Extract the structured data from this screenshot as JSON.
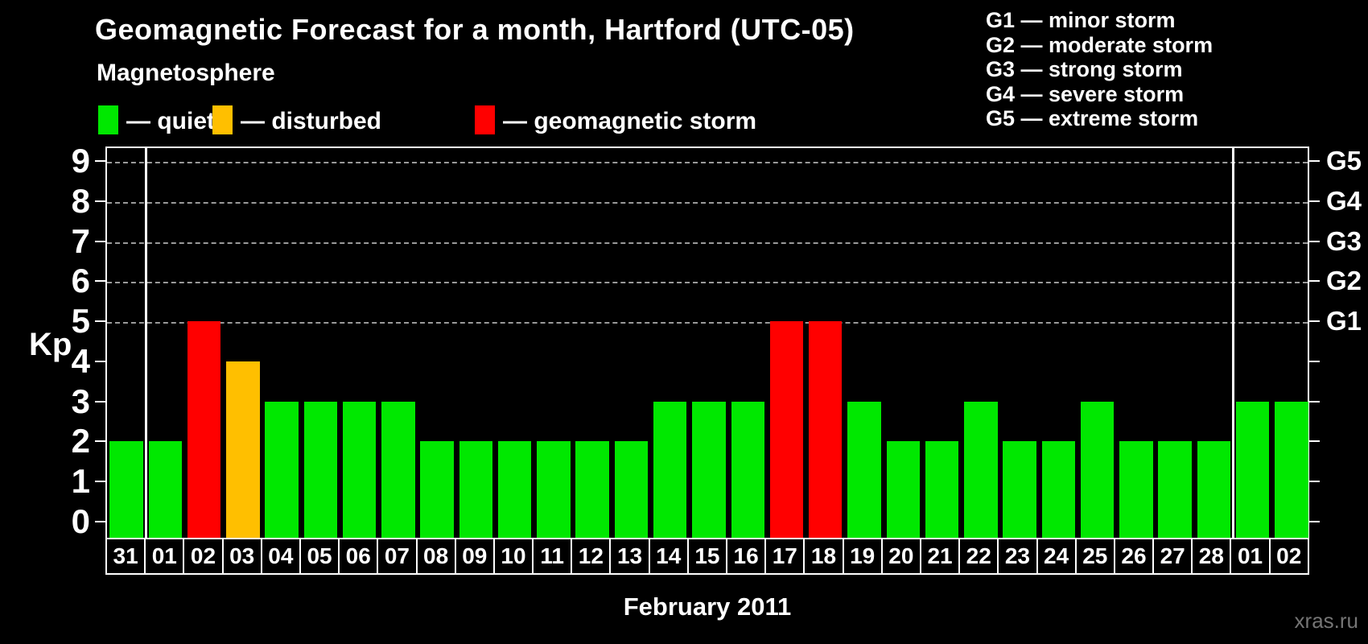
{
  "title": "Geomagnetic Forecast for a month, Hartford (UTC-05)",
  "legend": {
    "heading": "Magnetosphere",
    "items": [
      {
        "label": "— quiet",
        "color": "#00e800",
        "status": "quiet"
      },
      {
        "label": "— disturbed",
        "color": "#ffbf00",
        "status": "disturbed"
      },
      {
        "label": "— geomagnetic storm",
        "color": "#ff0000",
        "status": "storm"
      }
    ]
  },
  "g_legend": [
    "G1 — minor storm",
    "G2 — moderate storm",
    "G3 — strong storm",
    "G4 — severe storm",
    "G5 — extreme storm"
  ],
  "axes": {
    "y_label": "Kp",
    "y_ticks": [
      0,
      1,
      2,
      3,
      4,
      5,
      6,
      7,
      8,
      9
    ],
    "g_axis": [
      {
        "value": 5,
        "label": "G1"
      },
      {
        "value": 6,
        "label": "G2"
      },
      {
        "value": 7,
        "label": "G3"
      },
      {
        "value": 8,
        "label": "G4"
      },
      {
        "value": 9,
        "label": "G5"
      }
    ]
  },
  "x_title": "February 2011",
  "watermark": "xras.ru",
  "chart_data": {
    "type": "bar",
    "title": "Geomagnetic Forecast for a month, Hartford (UTC-05)",
    "xlabel": "February 2011",
    "ylabel": "Kp",
    "ylim": [
      0,
      9
    ],
    "grid_values": [
      5,
      6,
      7,
      8,
      9
    ],
    "legend_position": "top",
    "categories": [
      "31",
      "01",
      "02",
      "03",
      "04",
      "05",
      "06",
      "07",
      "08",
      "09",
      "10",
      "11",
      "12",
      "13",
      "14",
      "15",
      "16",
      "17",
      "18",
      "19",
      "20",
      "21",
      "22",
      "23",
      "24",
      "25",
      "26",
      "27",
      "28",
      "01",
      "02"
    ],
    "values": [
      2,
      2,
      5,
      4,
      3,
      3,
      3,
      3,
      2,
      2,
      2,
      2,
      2,
      2,
      3,
      3,
      3,
      5,
      5,
      3,
      2,
      2,
      3,
      2,
      2,
      3,
      2,
      2,
      2,
      3,
      3
    ],
    "statuses": [
      "quiet",
      "quiet",
      "storm",
      "disturbed",
      "quiet",
      "quiet",
      "quiet",
      "quiet",
      "quiet",
      "quiet",
      "quiet",
      "quiet",
      "quiet",
      "quiet",
      "quiet",
      "quiet",
      "quiet",
      "storm",
      "storm",
      "quiet",
      "quiet",
      "quiet",
      "quiet",
      "quiet",
      "quiet",
      "quiet",
      "quiet",
      "quiet",
      "quiet",
      "quiet",
      "quiet"
    ],
    "colors": {
      "quiet": "#00e800",
      "disturbed": "#ffbf00",
      "storm": "#ff0000"
    },
    "month_separators_after_index": [
      0,
      28
    ]
  }
}
